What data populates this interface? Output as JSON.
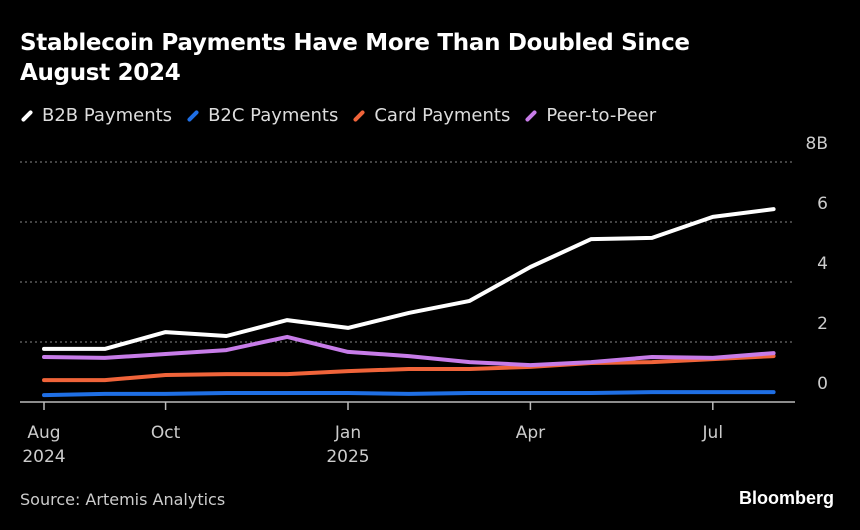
{
  "chart_data": {
    "type": "line",
    "title": "Stablecoin Payments Have More Than Doubled Since August 2024",
    "x": [
      "2024-08",
      "2024-09",
      "2024-10",
      "2024-11",
      "2024-12",
      "2025-01",
      "2025-02",
      "2025-03",
      "2025-04",
      "2025-05",
      "2025-06",
      "2025-07",
      "2025-08"
    ],
    "x_tick_labels": [
      {
        "x": "2024-08",
        "line1": "Aug",
        "line2": "2024"
      },
      {
        "x": "2024-10",
        "line1": "Oct",
        "line2": ""
      },
      {
        "x": "2025-01",
        "line1": "Jan",
        "line2": "2025"
      },
      {
        "x": "2025-04",
        "line1": "Apr",
        "line2": ""
      },
      {
        "x": "2025-07",
        "line1": "Jul",
        "line2": ""
      }
    ],
    "y_ticks": [
      0,
      2,
      4,
      6,
      8
    ],
    "y_tick_labels": [
      "0",
      "2",
      "4",
      "6",
      "8B"
    ],
    "ylim": [
      0,
      8
    ],
    "grid": true,
    "legend": "top",
    "series": [
      {
        "name": "B2B Payments",
        "color": "#ffffff",
        "values": [
          1.77,
          1.77,
          2.33,
          2.2,
          2.73,
          2.47,
          2.97,
          3.37,
          4.5,
          5.43,
          5.47,
          6.17,
          6.43
        ]
      },
      {
        "name": "B2C Payments",
        "color": "#1f6fe5",
        "values": [
          0.23,
          0.27,
          0.27,
          0.3,
          0.3,
          0.3,
          0.27,
          0.3,
          0.3,
          0.3,
          0.33,
          0.33,
          0.33
        ]
      },
      {
        "name": "Card Payments",
        "color": "#f0643a",
        "values": [
          0.73,
          0.73,
          0.9,
          0.93,
          0.93,
          1.03,
          1.1,
          1.1,
          1.17,
          1.3,
          1.33,
          1.43,
          1.53
        ]
      },
      {
        "name": "Peer-to-Peer",
        "color": "#c77ce8",
        "values": [
          1.5,
          1.47,
          1.6,
          1.73,
          2.17,
          1.67,
          1.53,
          1.33,
          1.23,
          1.33,
          1.5,
          1.47,
          1.63
        ]
      }
    ]
  },
  "source": "Source: Artemis Analytics",
  "brand": "Bloomberg"
}
